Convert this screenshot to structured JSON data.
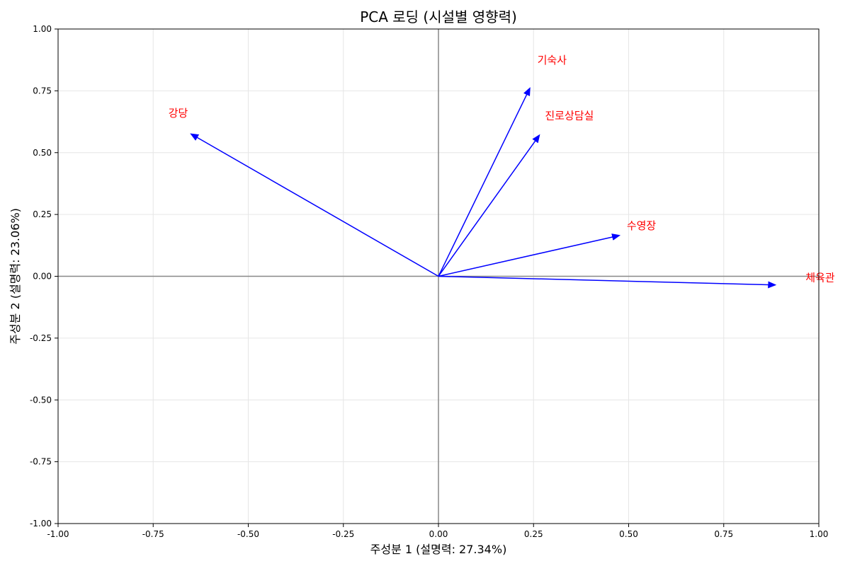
{
  "chart_data": {
    "type": "scatter",
    "title": "PCA 로딩 (시설별 영향력)",
    "xlabel": "주성분 1 (설명력: 27.34%)",
    "ylabel": "주성분 2 (설명력: 23.06%)",
    "xlim": [
      -1.0,
      1.0
    ],
    "ylim": [
      -1.0,
      1.0
    ],
    "xticks": [
      -1.0,
      -0.75,
      -0.5,
      -0.25,
      0.0,
      0.25,
      0.5,
      0.75,
      1.0
    ],
    "xtick_labels": [
      "-1.00",
      "-0.75",
      "-0.50",
      "-0.25",
      "0.00",
      "0.25",
      "0.50",
      "0.75",
      "1.00"
    ],
    "yticks": [
      1.0,
      0.75,
      0.5,
      0.25,
      0.0,
      -0.25,
      -0.5,
      -0.75,
      -1.0
    ],
    "ytick_labels": [
      "1.00",
      "0.75",
      "0.50",
      "0.25",
      "0.00",
      "-0.25",
      "-0.50",
      "-0.75",
      "-1.00"
    ],
    "grid": true,
    "zero_lines": true,
    "vector_color": "#0000ff",
    "label_color": "#ff0000",
    "loadings": [
      {
        "name": "기숙사",
        "x": 0.24,
        "y": 0.76,
        "label_x": 0.26,
        "label_y": 0.86
      },
      {
        "name": "진로상담실",
        "x": 0.265,
        "y": 0.57,
        "label_x": 0.28,
        "label_y": 0.635
      },
      {
        "name": "강당",
        "x": -0.65,
        "y": 0.575,
        "label_x": -0.71,
        "label_y": 0.645
      },
      {
        "name": "수영장",
        "x": 0.475,
        "y": 0.165,
        "label_x": 0.495,
        "label_y": 0.19
      },
      {
        "name": "체육관",
        "x": 0.885,
        "y": -0.035,
        "label_x": 0.965,
        "label_y": -0.02
      }
    ]
  }
}
